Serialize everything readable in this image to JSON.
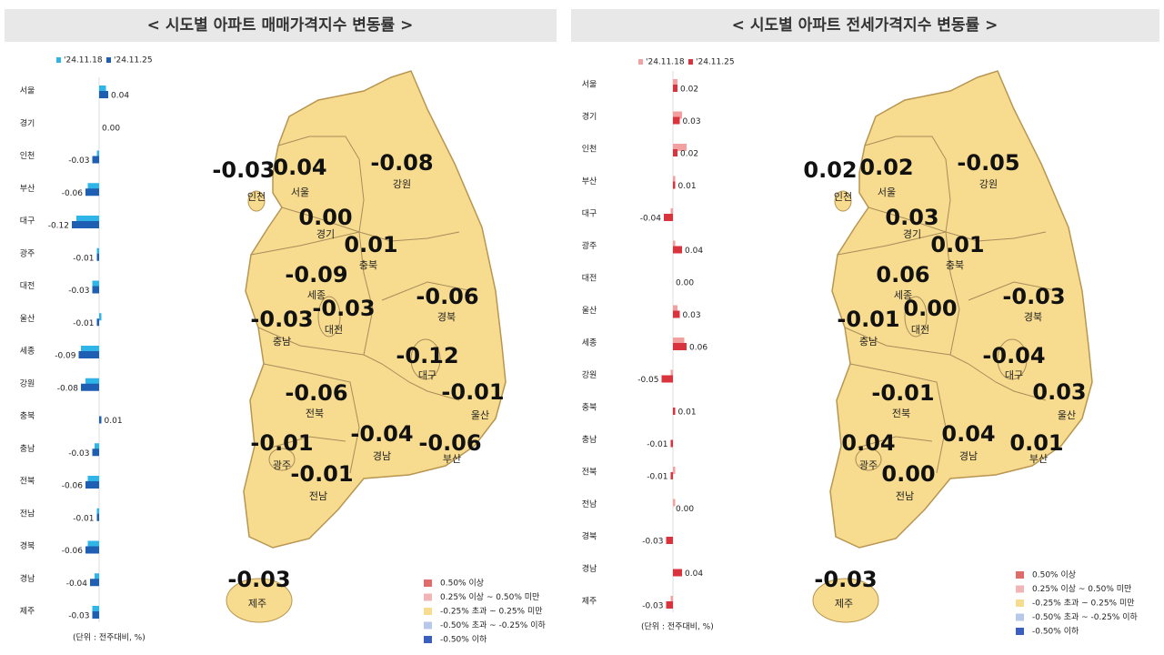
{
  "chart_data": [
    {
      "type": "bar",
      "title": "< 시도별 아파트 매매가격지수 변동률 >",
      "categories": [
        "서울",
        "경기",
        "인천",
        "부산",
        "대구",
        "광주",
        "대전",
        "울산",
        "세종",
        "강원",
        "충북",
        "충남",
        "전북",
        "전남",
        "경북",
        "경남",
        "제주"
      ],
      "series": [
        {
          "name": "'24.11.18",
          "color": "#2fb5e8",
          "values": [
            0.03,
            0.0,
            -0.01,
            -0.05,
            -0.1,
            -0.01,
            -0.03,
            0.01,
            -0.08,
            -0.06,
            0.0,
            -0.02,
            -0.05,
            -0.01,
            -0.05,
            -0.02,
            -0.03
          ]
        },
        {
          "name": "'24.11.25",
          "color": "#1e5fb4",
          "values": [
            0.04,
            0.0,
            -0.03,
            -0.06,
            -0.12,
            -0.01,
            -0.03,
            -0.01,
            -0.09,
            -0.08,
            0.01,
            -0.03,
            -0.06,
            -0.01,
            -0.06,
            -0.04,
            -0.03
          ],
          "value_labels": [
            "0.04",
            "0.00",
            "-0.03",
            "-0.06",
            "-0.12",
            "-0.01",
            "-0.03",
            "-0.01",
            "-0.09",
            "-0.08",
            "0.01",
            "-0.03",
            "-0.06",
            "-0.01",
            "-0.06",
            "-0.04",
            "-0.03"
          ]
        }
      ],
      "unit_note": "(단위 : 전주대비, %)",
      "map_legend": [
        {
          "label": "0.50% 이상",
          "color": "#e06b6b"
        },
        {
          "label": "0.25% 이상 ~ 0.50% 미만",
          "color": "#f2b5b5"
        },
        {
          "label": "-0.25% 초과 ~ 0.25% 미만",
          "color": "#f7dc8f"
        },
        {
          "label": "-0.50% 초과 ~ -0.25% 이하",
          "color": "#b8c8ea"
        },
        {
          "label": "-0.50% 이하",
          "color": "#3b5fc0"
        }
      ]
    },
    {
      "type": "bar",
      "title": "< 시도별 아파트 전세가격지수 변동률 >",
      "categories": [
        "서울",
        "경기",
        "인천",
        "부산",
        "대구",
        "광주",
        "대전",
        "울산",
        "세종",
        "강원",
        "충북",
        "충남",
        "전북",
        "전남",
        "경북",
        "경남",
        "제주"
      ],
      "series": [
        {
          "name": "'24.11.18",
          "color": "#f2a0a0",
          "values": [
            0.02,
            0.04,
            0.06,
            0.01,
            -0.01,
            0.01,
            0.0,
            0.02,
            0.05,
            -0.01,
            0.0,
            0.0,
            0.01,
            0.01,
            0.0,
            0.0,
            -0.01
          ]
        },
        {
          "name": "'24.11.25",
          "color": "#d9343e",
          "values": [
            0.02,
            0.03,
            0.02,
            0.01,
            -0.04,
            0.04,
            0.0,
            0.03,
            0.06,
            -0.05,
            0.01,
            -0.01,
            -0.01,
            0.0,
            -0.03,
            0.04,
            -0.03
          ],
          "value_labels": [
            "0.02",
            "0.03",
            "0.02",
            "0.01",
            "-0.04",
            "0.04",
            "0.00",
            "0.03",
            "0.06",
            "-0.05",
            "0.01",
            "-0.01",
            "-0.01",
            "0.00",
            "-0.03",
            "0.04",
            "-0.03"
          ]
        }
      ],
      "unit_note": "(단위 : 전주대비, %)",
      "map_legend": [
        {
          "label": "0.50% 이상",
          "color": "#e06b6b"
        },
        {
          "label": "0.25% 이상 ~ 0.50% 미만",
          "color": "#f2b5b5"
        },
        {
          "label": "-0.25% 초과 ~ 0.25% 미만",
          "color": "#f7dc8f"
        },
        {
          "label": "-0.50% 초과 ~ -0.25% 이하",
          "color": "#b8c8ea"
        },
        {
          "label": "-0.50% 이하",
          "color": "#3b5fc0"
        }
      ]
    }
  ]
}
